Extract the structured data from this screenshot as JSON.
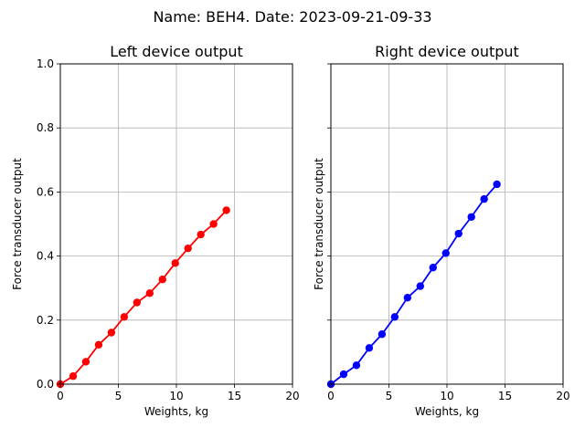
{
  "suptitle": "Name: BEH4. Date: 2023-09-21-09-33",
  "chart_data": [
    {
      "type": "line",
      "title": "Left device output",
      "xlabel": "Weights, kg",
      "ylabel": "Force transducer output",
      "xlim": [
        0,
        20
      ],
      "ylim": [
        0,
        1.0
      ],
      "xticks": [
        "0",
        "5",
        "10",
        "15",
        "20"
      ],
      "yticks": [
        "0.0",
        "0.2",
        "0.4",
        "0.6",
        "0.8",
        "1.0"
      ],
      "grid": true,
      "series": [
        {
          "color": "#ff0000",
          "marker": "circle",
          "x": [
            0,
            1.1,
            2.2,
            3.3,
            4.4,
            5.5,
            6.6,
            7.7,
            8.8,
            9.9,
            11.0,
            12.1,
            13.2,
            14.3
          ],
          "y": [
            0.0,
            0.025,
            0.07,
            0.123,
            0.161,
            0.21,
            0.255,
            0.284,
            0.327,
            0.378,
            0.424,
            0.467,
            0.5,
            0.543
          ]
        }
      ]
    },
    {
      "type": "line",
      "title": "Right device output",
      "xlabel": "Weights, kg",
      "ylabel": "Force transducer output",
      "xlim": [
        0,
        20
      ],
      "ylim": [
        0,
        1.0
      ],
      "xticks": [
        "0",
        "5",
        "10",
        "15",
        "20"
      ],
      "yticks": [],
      "grid": true,
      "series": [
        {
          "color": "#0000ff",
          "marker": "circle",
          "x": [
            0,
            1.1,
            2.2,
            3.3,
            4.4,
            5.5,
            6.6,
            7.7,
            8.8,
            9.9,
            11.0,
            12.1,
            13.2,
            14.3
          ],
          "y": [
            0.0,
            0.031,
            0.059,
            0.113,
            0.156,
            0.21,
            0.27,
            0.306,
            0.364,
            0.409,
            0.47,
            0.522,
            0.578,
            0.624
          ]
        }
      ]
    }
  ]
}
